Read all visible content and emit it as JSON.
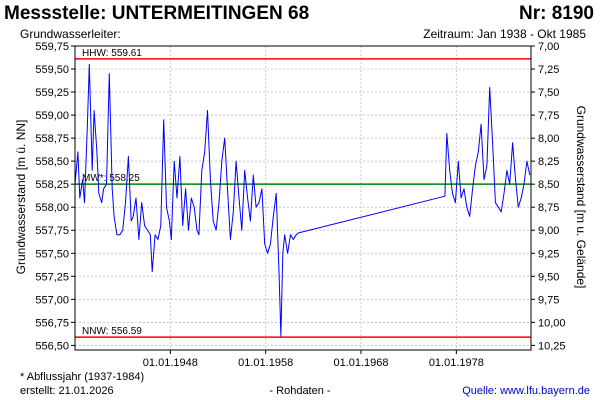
{
  "header": {
    "title": "Messstelle: UNTERMEITINGEN 68",
    "number": "Nr: 8190",
    "aquifer": "Grundwasserleiter:",
    "period": "Zeitraum: Jan 1938 - Okt 1985"
  },
  "footer": {
    "footnote": "* Abflussjahr (1937-1984)",
    "created": "erstellt:  21.01.2026",
    "raw": "- Rohdaten -",
    "source": "Quelle: www.lfu.bayern.de"
  },
  "colors": {
    "series": "#0000ff",
    "extreme_lines": "#ff0000",
    "mean_line": "#008000",
    "grid": "#c8c8c8"
  },
  "chart_data": {
    "type": "line",
    "grid": true,
    "ylabel": "Grundwasserstand [m ü. NN]",
    "ylabel_right": "Grundwasserstand [m u. Gelände]",
    "xlim": [
      1938.0,
      1985.83
    ],
    "ylim": [
      556.45,
      559.75
    ],
    "ylim_right": [
      7.0,
      10.3
    ],
    "y_ticks": [
      556.5,
      556.75,
      557.0,
      557.25,
      557.5,
      557.75,
      558.0,
      558.25,
      558.5,
      558.75,
      559.0,
      559.25,
      559.5,
      559.75
    ],
    "y_tick_labels": [
      "556,50",
      "556,75",
      "557,00",
      "557,25",
      "557,50",
      "557,75",
      "558,00",
      "558,25",
      "558,50",
      "558,75",
      "559,00",
      "559,25",
      "559,50",
      "559,75"
    ],
    "y2_ticks": [
      7.0,
      7.25,
      7.5,
      7.75,
      8.0,
      8.25,
      8.5,
      8.75,
      9.0,
      9.25,
      9.5,
      9.75,
      10.0,
      10.25
    ],
    "y2_tick_labels": [
      "7,00",
      "7,25",
      "7,50",
      "7,75",
      "8,00",
      "8,25",
      "8,50",
      "8,75",
      "9,00",
      "9,25",
      "9,50",
      "9,75",
      "10,00",
      "10,25"
    ],
    "x_ticks": [
      1948.0,
      1958.0,
      1968.0,
      1978.0
    ],
    "x_tick_labels": [
      "01.01.1948",
      "01.01.1958",
      "01.01.1968",
      "01.01.1978"
    ],
    "reference_lines": [
      {
        "label": "HHW: 559.61",
        "value": 559.61,
        "color": "#ff0000"
      },
      {
        "label": "MW*: 558.25",
        "value": 558.25,
        "color": "#008000"
      },
      {
        "label": "NNW: 556.59",
        "value": 556.59,
        "color": "#ff0000"
      }
    ],
    "series": [
      {
        "x": [
          1938.0,
          1938.3,
          1938.5,
          1938.8,
          1939.0,
          1939.3,
          1939.5,
          1939.8,
          1940.0,
          1940.3,
          1940.5,
          1940.8,
          1941.0,
          1941.3,
          1941.6,
          1941.9,
          1942.1,
          1942.4,
          1942.7,
          1943.0,
          1943.3,
          1943.6,
          1943.9,
          1944.1,
          1944.4,
          1944.7,
          1945.0,
          1945.3,
          1945.6,
          1945.9,
          1946.1,
          1946.4,
          1946.7,
          1947.0,
          1947.3,
          1947.6,
          1947.9,
          1948.1,
          1948.4,
          1948.7,
          1949.0,
          1949.3,
          1949.6,
          1949.9,
          1950.2,
          1950.5,
          1950.8,
          1951.0,
          1951.3,
          1951.6,
          1951.9,
          1952.2,
          1952.5,
          1952.8,
          1953.1,
          1953.4,
          1953.7,
          1954.0,
          1954.3,
          1954.6,
          1954.9,
          1955.2,
          1955.5,
          1955.8,
          1956.1,
          1956.4,
          1956.7,
          1957.0,
          1957.3,
          1957.6,
          1957.9,
          1958.2,
          1958.5,
          1958.8,
          1959.1,
          1959.4,
          1959.6,
          1959.8,
          1960.0,
          1960.3,
          1960.6,
          1960.9,
          1961.2,
          1961.4,
          1976.8,
          1977.0,
          1977.3,
          1977.6,
          1977.9,
          1978.2,
          1978.5,
          1978.8,
          1979.1,
          1979.4,
          1979.7,
          1980.0,
          1980.3,
          1980.6,
          1980.9,
          1981.2,
          1981.5,
          1981.8,
          1982.1,
          1982.4,
          1982.7,
          1983.0,
          1983.3,
          1983.6,
          1983.9,
          1984.2,
          1984.5,
          1984.8,
          1985.1,
          1985.4,
          1985.7
        ],
        "values": [
          558.25,
          558.6,
          558.1,
          558.3,
          558.05,
          558.9,
          559.55,
          558.4,
          559.05,
          558.6,
          558.15,
          558.05,
          558.2,
          558.25,
          559.45,
          558.2,
          557.9,
          557.7,
          557.7,
          557.75,
          558.05,
          558.55,
          557.85,
          557.9,
          558.1,
          557.65,
          558.05,
          557.8,
          557.75,
          557.7,
          557.3,
          557.7,
          557.65,
          557.8,
          558.95,
          558.0,
          557.85,
          557.65,
          558.5,
          558.1,
          558.55,
          557.8,
          558.2,
          557.75,
          558.1,
          558.0,
          557.75,
          557.7,
          558.4,
          558.6,
          559.05,
          558.3,
          557.85,
          557.75,
          558.05,
          558.5,
          558.75,
          558.2,
          557.65,
          557.95,
          558.5,
          558.1,
          557.75,
          558.4,
          558.1,
          557.85,
          558.35,
          558.0,
          558.05,
          558.2,
          557.6,
          557.5,
          557.6,
          557.9,
          558.15,
          557.3,
          556.6,
          557.5,
          557.7,
          557.5,
          557.7,
          557.65,
          557.7,
          557.72,
          558.12,
          558.8,
          558.4,
          558.15,
          558.05,
          558.5,
          558.1,
          558.2,
          558.0,
          557.9,
          558.2,
          558.45,
          558.6,
          558.9,
          558.3,
          558.45,
          559.3,
          558.7,
          558.05,
          558.0,
          557.95,
          558.15,
          558.4,
          558.25,
          558.7,
          558.3,
          558.0,
          558.1,
          558.25,
          558.5,
          558.35
        ]
      }
    ]
  }
}
